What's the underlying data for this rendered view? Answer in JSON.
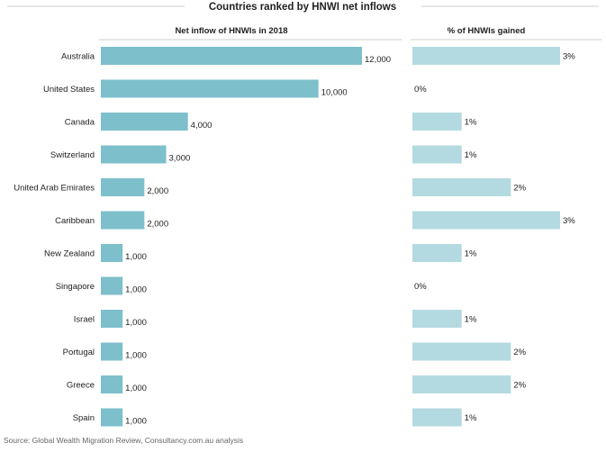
{
  "chart_data": {
    "type": "bar",
    "title": "Countries ranked by HNWI net inflows",
    "categories": [
      "Australia",
      "United States",
      "Canada",
      "Switzerland",
      "United Arab Emirates",
      "Caribbean",
      "New Zealand",
      "Singapore",
      "Israel",
      "Portugal",
      "Greece",
      "Spain"
    ],
    "series": [
      {
        "name": "Net inflow of HNWIs in 2018",
        "values": [
          12000,
          10000,
          4000,
          3000,
          2000,
          2000,
          1000,
          1000,
          1000,
          1000,
          1000,
          1000
        ],
        "labels": [
          "12,000",
          "10,000",
          "4,000",
          "3,000",
          "2,000",
          "2,000",
          "1,000",
          "1,000",
          "1,000",
          "1,000",
          "1,000",
          "1,000"
        ],
        "color": "#7dbfcb",
        "xlim": [
          0,
          12000
        ]
      },
      {
        "name": "% of HNWIs gained",
        "values": [
          3,
          0,
          1,
          1,
          2,
          3,
          1,
          0,
          1,
          2,
          2,
          1
        ],
        "labels": [
          "3%",
          "0%",
          "1%",
          "1%",
          "2%",
          "3%",
          "1%",
          "0%",
          "1%",
          "2%",
          "2%",
          "1%"
        ],
        "color": "#b4dae1",
        "xlim": [
          0,
          3
        ]
      }
    ],
    "orientation": "horizontal",
    "grid": false,
    "legend": "none"
  },
  "source": "Source: Global Wealth Migration Review, Consultancy.com.au analysis"
}
